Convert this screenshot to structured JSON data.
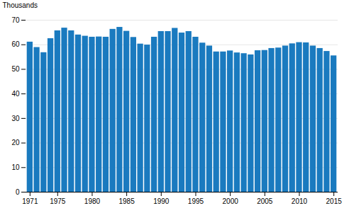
{
  "chart_data": {
    "type": "bar",
    "ylabel": "Thousands",
    "x": [
      1971,
      1972,
      1973,
      1974,
      1975,
      1976,
      1977,
      1978,
      1979,
      1980,
      1981,
      1982,
      1983,
      1984,
      1985,
      1986,
      1987,
      1988,
      1989,
      1990,
      1991,
      1992,
      1993,
      1994,
      1995,
      1996,
      1997,
      1998,
      1999,
      2000,
      2001,
      2002,
      2003,
      2004,
      2005,
      2006,
      2007,
      2008,
      2009,
      2010,
      2011,
      2012,
      2013,
      2014,
      2015
    ],
    "values": [
      61.1,
      58.9,
      56.8,
      62.5,
      65.7,
      66.8,
      65.7,
      64.0,
      63.5,
      63.1,
      63.2,
      63.1,
      66.3,
      67.1,
      65.5,
      63.0,
      60.3,
      59.9,
      63.1,
      65.4,
      65.4,
      66.7,
      64.8,
      65.4,
      63.1,
      60.7,
      59.5,
      57.1,
      57.1,
      57.5,
      56.7,
      56.4,
      55.9,
      57.6,
      57.7,
      58.5,
      58.7,
      59.5,
      60.4,
      60.9,
      60.8,
      59.5,
      58.5,
      57.3,
      55.5
    ],
    "color": "#1a7abf",
    "xlim": [
      1970.4,
      2015.6
    ],
    "xticks": [
      1971,
      1975,
      1980,
      1985,
      1990,
      1995,
      2000,
      2005,
      2010,
      2015
    ],
    "ylim": [
      0,
      70
    ],
    "yticks": [
      0,
      10,
      20,
      30,
      40,
      50,
      60,
      70
    ],
    "grid": true
  }
}
